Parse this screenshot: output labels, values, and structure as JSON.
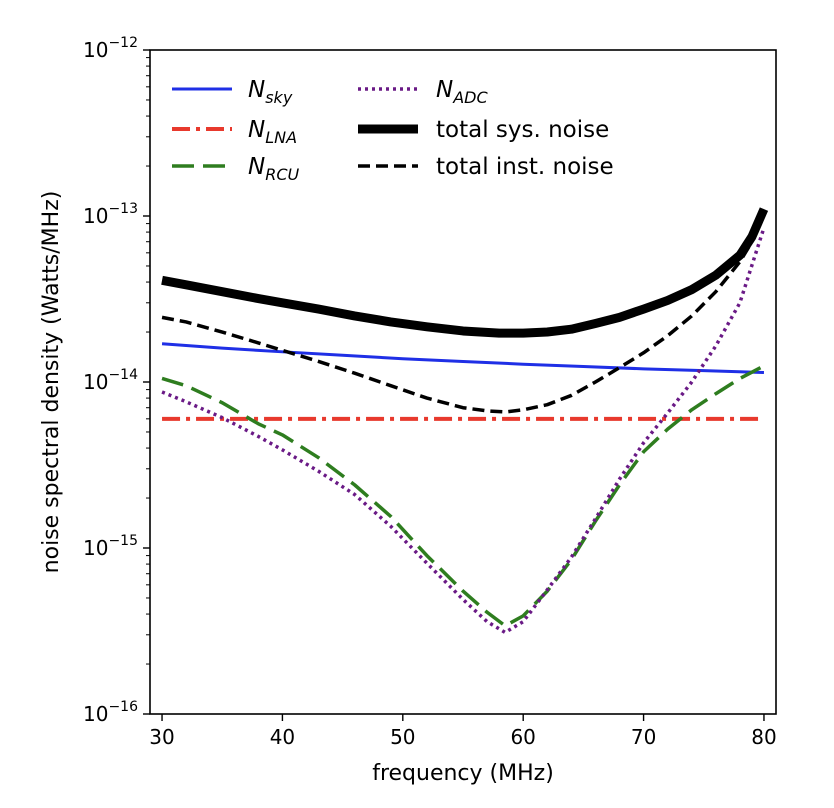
{
  "chart_data": {
    "type": "line",
    "xlabel": "frequency (MHz)",
    "ylabel": "noise spectral density (Watts/MHz)",
    "xlim": [
      29,
      81
    ],
    "ylim": [
      1e-16,
      1e-12
    ],
    "yscale": "log",
    "grid": false,
    "legend_position": "top-left",
    "x_ticks": [
      {
        "value": 30,
        "label": "30"
      },
      {
        "value": 40,
        "label": "40"
      },
      {
        "value": 50,
        "label": "50"
      },
      {
        "value": 60,
        "label": "60"
      },
      {
        "value": 70,
        "label": "70"
      },
      {
        "value": 80,
        "label": "80"
      }
    ],
    "y_ticks": [
      {
        "value": 1e-16,
        "base": "10",
        "exp": "−16"
      },
      {
        "value": 1e-15,
        "base": "10",
        "exp": "−15"
      },
      {
        "value": 1e-14,
        "base": "10",
        "exp": "−14"
      },
      {
        "value": 1e-13,
        "base": "10",
        "exp": "−13"
      },
      {
        "value": 1e-12,
        "base": "10",
        "exp": "−12"
      }
    ],
    "series": [
      {
        "name_main": "N",
        "name_sub": "sky",
        "color": "#1f2fe6",
        "dash": "solid",
        "width": 3,
        "x": [
          30,
          35,
          40,
          45,
          50,
          55,
          60,
          65,
          70,
          75,
          80
        ],
        "y": [
          1.7e-14,
          1.6e-14,
          1.52e-14,
          1.45e-14,
          1.38e-14,
          1.33e-14,
          1.28e-14,
          1.24e-14,
          1.2e-14,
          1.17e-14,
          1.14e-14
        ]
      },
      {
        "name_main": "N",
        "name_sub": "LNA",
        "color": "#e8392d",
        "dash": "dashdot",
        "width": 4,
        "x": [
          30,
          80
        ],
        "y": [
          6e-15,
          6e-15
        ]
      },
      {
        "name_main": "N",
        "name_sub": "RCU",
        "color": "#2e7d1f",
        "dash": "longdash",
        "width": 3.5,
        "x": [
          30,
          32,
          35,
          38,
          40,
          43,
          46,
          49,
          52,
          55,
          57,
          58.5,
          60,
          62,
          64,
          66,
          68,
          70,
          72,
          74,
          76,
          78,
          80
        ],
        "y": [
          1.05e-14,
          9.5e-15,
          7.5e-15,
          5.6e-15,
          4.8e-15,
          3.5e-15,
          2.4e-15,
          1.55e-15,
          9e-16,
          5.5e-16,
          4.1e-16,
          3.4e-16,
          3.9e-16,
          5.5e-16,
          8.5e-16,
          1.45e-15,
          2.4e-15,
          3.8e-15,
          5.2e-15,
          6.8e-15,
          8.5e-15,
          1.05e-14,
          1.25e-14
        ]
      },
      {
        "name_main": "N",
        "name_sub": "ADC",
        "color": "#6a1a86",
        "dash": "dotted",
        "width": 3.5,
        "x": [
          30,
          32,
          35,
          38,
          40,
          43,
          46,
          49,
          52,
          55,
          57,
          58.5,
          60,
          62,
          64,
          66,
          68,
          70,
          72,
          74,
          76,
          78,
          80
        ],
        "y": [
          8.7e-15,
          7.6e-15,
          6.1e-15,
          4.7e-15,
          3.9e-15,
          2.9e-15,
          2.1e-15,
          1.35e-15,
          8.1e-16,
          4.9e-16,
          3.6e-16,
          3.1e-16,
          3.6e-16,
          5.6e-16,
          8.8e-16,
          1.5e-15,
          2.6e-15,
          4.3e-15,
          6.5e-15,
          1e-14,
          1.65e-14,
          3e-14,
          8.5e-14
        ]
      },
      {
        "name_main": "total sys. noise",
        "name_sub": "",
        "color": "#000000",
        "dash": "solid",
        "width": 9,
        "x": [
          30,
          32,
          35,
          38,
          40,
          43,
          46,
          49,
          52,
          55,
          58,
          60,
          62,
          64,
          66,
          68,
          70,
          72,
          74,
          76,
          78,
          79,
          80
        ],
        "y": [
          4.1e-14,
          3.85e-14,
          3.5e-14,
          3.18e-14,
          3e-14,
          2.75e-14,
          2.5e-14,
          2.3e-14,
          2.15e-14,
          2.03e-14,
          1.97e-14,
          1.97e-14,
          2e-14,
          2.08e-14,
          2.25e-14,
          2.45e-14,
          2.75e-14,
          3.1e-14,
          3.6e-14,
          4.4e-14,
          5.8e-14,
          7.5e-14,
          1.1e-13
        ]
      },
      {
        "name_main": "total inst. noise",
        "name_sub": "",
        "color": "#000000",
        "dash": "dashed",
        "width": 3.5,
        "x": [
          30,
          32,
          35,
          38,
          40,
          43,
          46,
          49,
          52,
          55,
          57,
          58.5,
          60,
          62,
          64,
          66,
          68,
          70,
          72,
          74,
          76,
          78,
          79,
          80
        ],
        "y": [
          2.45e-14,
          2.3e-14,
          2e-14,
          1.72e-14,
          1.55e-14,
          1.33e-14,
          1.13e-14,
          9.5e-15,
          8e-15,
          7e-15,
          6.7e-15,
          6.6e-15,
          6.8e-15,
          7.3e-15,
          8.3e-15,
          1e-14,
          1.22e-14,
          1.5e-14,
          1.9e-14,
          2.5e-14,
          3.5e-14,
          5.3e-14,
          7e-14,
          1.05e-13
        ]
      }
    ]
  }
}
